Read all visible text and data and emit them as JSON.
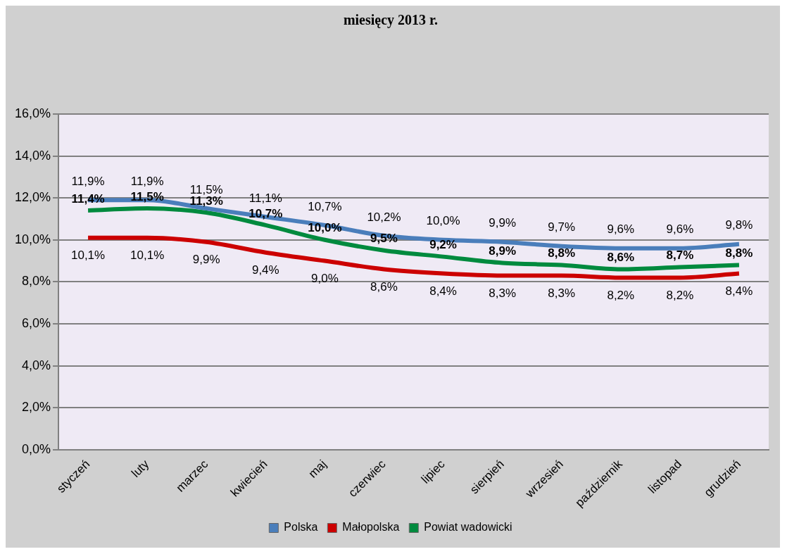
{
  "chart_data": {
    "type": "line",
    "title": "miesięcy 2013 r.",
    "categories": [
      "styczeń",
      "luty",
      "marzec",
      "kwiecień",
      "maj",
      "czerwiec",
      "lipiec",
      "sierpień",
      "wrzesień",
      "październik",
      "listopad",
      "grudzień"
    ],
    "series": [
      {
        "name": "Polska",
        "color": "#4a7ebb",
        "values": [
          11.9,
          11.9,
          11.5,
          11.1,
          10.7,
          10.2,
          10.0,
          9.9,
          9.7,
          9.6,
          9.6,
          9.8
        ],
        "value_labels": [
          "11,9%",
          "11,9%",
          "11,5%",
          "11,1%",
          "10,7%",
          "10,2%",
          "10,0%",
          "9,9%",
          "9,7%",
          "9,6%",
          "9,6%",
          "9,8%"
        ]
      },
      {
        "name": "Małopolska",
        "color": "#cc0000",
        "values": [
          10.1,
          10.1,
          9.9,
          9.4,
          9.0,
          8.6,
          8.4,
          8.3,
          8.3,
          8.2,
          8.2,
          8.4
        ],
        "value_labels": [
          "10,1%",
          "10,1%",
          "9,9%",
          "9,4%",
          "9,0%",
          "8,6%",
          "8,4%",
          "8,3%",
          "8,3%",
          "8,2%",
          "8,2%",
          "8,4%"
        ]
      },
      {
        "name": "Powiat wadowicki",
        "color": "#008a3e",
        "values": [
          11.4,
          11.5,
          11.3,
          10.7,
          10.0,
          9.5,
          9.2,
          8.9,
          8.8,
          8.6,
          8.7,
          8.8
        ],
        "value_labels": [
          "11,4%",
          "11,5%",
          "11,3%",
          "10,7%",
          "10,0%",
          "9,5%",
          "9,2%",
          "8,9%",
          "8,8%",
          "8,6%",
          "8,7%",
          "8,8%"
        ]
      }
    ],
    "ylim": [
      0,
      16
    ],
    "yticks": [
      {
        "value": 0,
        "label": "0,0%"
      },
      {
        "value": 2,
        "label": "2,0%"
      },
      {
        "value": 4,
        "label": "4,0%"
      },
      {
        "value": 6,
        "label": "6,0%"
      },
      {
        "value": 8,
        "label": "8,0%"
      },
      {
        "value": 10,
        "label": "10,0%"
      },
      {
        "value": 12,
        "label": "12,0%"
      },
      {
        "value": 14,
        "label": "14,0%"
      },
      {
        "value": 16,
        "label": "16,0%"
      }
    ],
    "grid": "y",
    "legend": "bottom",
    "marker": "none",
    "line_style": "solid"
  }
}
